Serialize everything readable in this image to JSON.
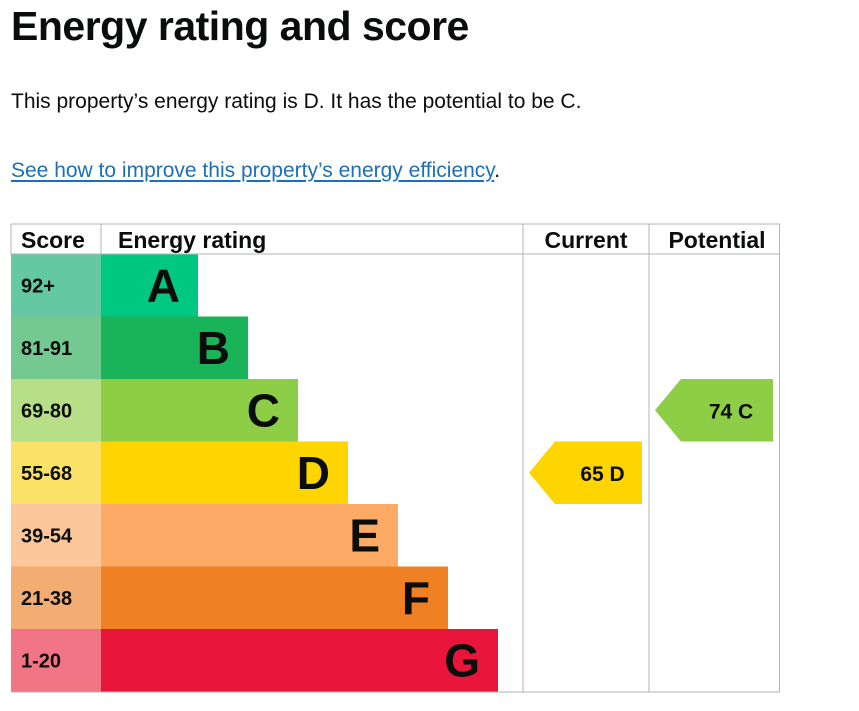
{
  "heading": "Energy rating and score",
  "summary": "This property’s energy rating is D. It has the potential to be C.",
  "improve_link": "See how to improve this property’s energy efficiency",
  "improve_suffix": ".",
  "chart_data": {
    "type": "bar",
    "headers": {
      "score": "Score",
      "rating": "Energy rating",
      "current": "Current",
      "potential": "Potential"
    },
    "bands": [
      {
        "letter": "A",
        "range": "92+",
        "color": "#00c781",
        "score_color": "#64c8a3"
      },
      {
        "letter": "B",
        "range": "81-91",
        "color": "#19b459",
        "score_color": "#73c990"
      },
      {
        "letter": "C",
        "range": "69-80",
        "color": "#8dce46",
        "score_color": "#b6df87"
      },
      {
        "letter": "D",
        "range": "55-68",
        "color": "#ffd500",
        "score_color": "#fce169"
      },
      {
        "letter": "E",
        "range": "39-54",
        "color": "#fcaa65",
        "score_color": "#fcc79a"
      },
      {
        "letter": "F",
        "range": "21-38",
        "color": "#ef8023",
        "score_color": "#f3ad72"
      },
      {
        "letter": "G",
        "range": "1-20",
        "color": "#e9153b",
        "score_color": "#f27586"
      }
    ],
    "current": {
      "score": 65,
      "band": "D",
      "label": "65  D",
      "color": "#ffd500"
    },
    "potential": {
      "score": 74,
      "band": "C",
      "label": "74  C",
      "color": "#8dce46"
    }
  }
}
